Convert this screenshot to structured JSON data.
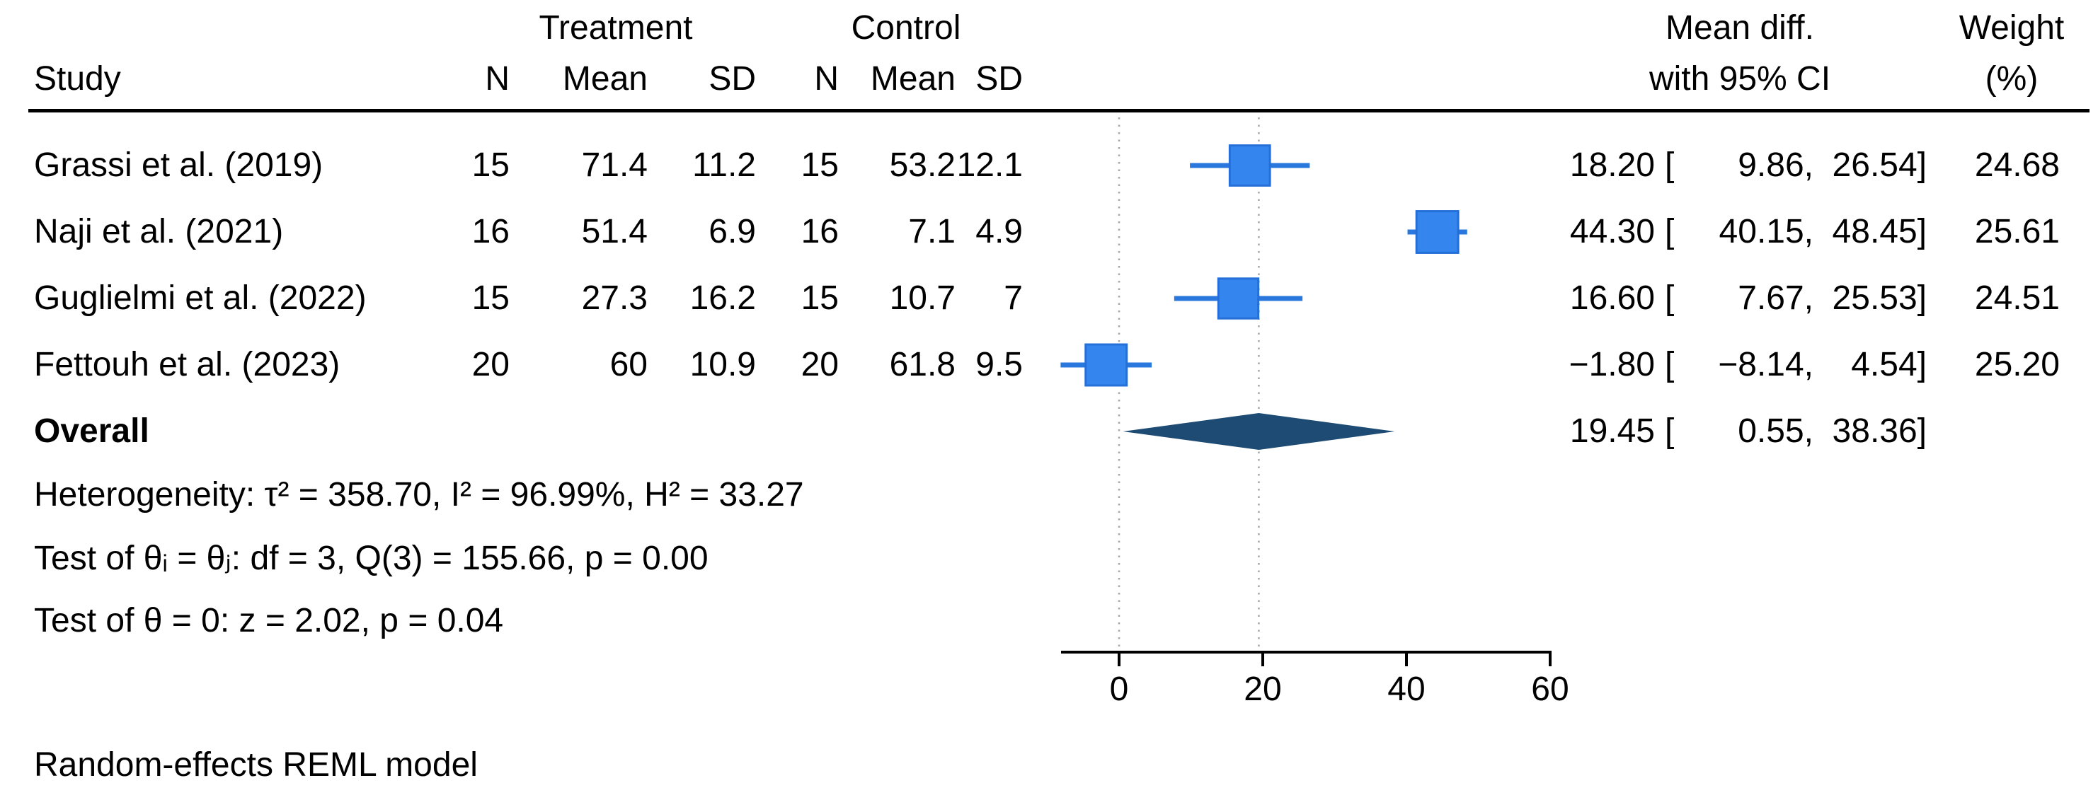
{
  "colors": {
    "square": "#3585ef",
    "square_border": "#2470d8",
    "ci_line": "#2a77dd",
    "diamond": "#1d4b73",
    "ref_line": "#a6a6a6",
    "axis": "#000000",
    "text": "#000000"
  },
  "header": {
    "group1": "Treatment",
    "group2": "Control",
    "study": "Study",
    "n1": "N",
    "mean1": "Mean",
    "sd1": "SD",
    "n2": "N",
    "mean2": "Mean",
    "sd2": "SD",
    "effect_line1": "Mean diff.",
    "effect_line2": "with 95% CI",
    "weight_line1": "Weight",
    "weight_line2": "(%)"
  },
  "rows": [
    {
      "study": "Grassi et al. (2019)",
      "n1": "15",
      "mean1": "71.4",
      "sd1": "11.2",
      "n2": "15",
      "mean2": "53.2",
      "sd2": "12.1",
      "est": "18.20",
      "open": "[",
      "low": "9.86,",
      "high": "26.54]",
      "weight": "24.68"
    },
    {
      "study": "Naji et al. (2021)",
      "n1": "16",
      "mean1": "51.4",
      "sd1": "6.9",
      "n2": "16",
      "mean2": "7.1",
      "sd2": "4.9",
      "est": "44.30",
      "open": "[",
      "low": "40.15,",
      "high": "48.45]",
      "weight": "25.61"
    },
    {
      "study": "Guglielmi et al. (2022)",
      "n1": "15",
      "mean1": "27.3",
      "sd1": "16.2",
      "n2": "15",
      "mean2": "10.7",
      "sd2": "7",
      "est": "16.60",
      "open": "[",
      "low": "7.67,",
      "high": "25.53]",
      "weight": "24.51"
    },
    {
      "study": "Fettouh et al. (2023)",
      "n1": "20",
      "mean1": "60",
      "sd1": "10.9",
      "n2": "20",
      "mean2": "61.8",
      "sd2": "9.5",
      "est": "−1.80",
      "open": "[",
      "low": "−8.14,",
      "high": "4.54]",
      "weight": "25.20"
    }
  ],
  "overall": {
    "label": "Overall",
    "est": "19.45",
    "open": "[",
    "low": "0.55,",
    "high": "38.36]"
  },
  "stats": {
    "heterogeneity": "Heterogeneity: τ² = 358.70, I² = 96.99%, H² = 33.27",
    "test_between": "Test of θᵢ = θⱼ: df = 3, Q(3) = 155.66, p = 0.00",
    "test_overall": "Test of θ = 0: z = 2.02, p = 0.04"
  },
  "footnote": "Random-effects REML model",
  "axis": {
    "tick_labels": [
      "0",
      "20",
      "40",
      "60"
    ]
  },
  "chart_data": {
    "type": "forest",
    "effect_label": "Mean diff. with 95% CI",
    "model": "Random-effects REML model",
    "columns_left": [
      "Study",
      "Treatment N",
      "Treatment Mean",
      "Treatment SD",
      "Control N",
      "Control Mean",
      "Control SD"
    ],
    "columns_right": [
      "Mean diff. with 95% CI",
      "Weight (%)"
    ],
    "studies": [
      {
        "label": "Grassi et al. (2019)",
        "n_t": 15,
        "mean_t": 71.4,
        "sd_t": 11.2,
        "n_c": 15,
        "mean_c": 53.2,
        "sd_c": 12.1,
        "est": 18.2,
        "ci_low": 9.86,
        "ci_high": 26.54,
        "weight": 24.68
      },
      {
        "label": "Naji et al. (2021)",
        "n_t": 16,
        "mean_t": 51.4,
        "sd_t": 6.9,
        "n_c": 16,
        "mean_c": 7.1,
        "sd_c": 4.9,
        "est": 44.3,
        "ci_low": 40.15,
        "ci_high": 48.45,
        "weight": 25.61
      },
      {
        "label": "Guglielmi et al. (2022)",
        "n_t": 15,
        "mean_t": 27.3,
        "sd_t": 16.2,
        "n_c": 15,
        "mean_c": 10.7,
        "sd_c": 7,
        "est": 16.6,
        "ci_low": 7.67,
        "ci_high": 25.53,
        "weight": 24.51
      },
      {
        "label": "Fettouh et al. (2023)",
        "n_t": 20,
        "mean_t": 60,
        "sd_t": 10.9,
        "n_c": 20,
        "mean_c": 61.8,
        "sd_c": 9.5,
        "est": -1.8,
        "ci_low": -8.14,
        "ci_high": 4.54,
        "weight": 25.2
      }
    ],
    "overall": {
      "label": "Overall",
      "est": 19.45,
      "ci_low": 0.55,
      "ci_high": 38.36
    },
    "heterogeneity": {
      "tau2": 358.7,
      "I2_pct": 96.99,
      "H2": 33.27
    },
    "test_between": {
      "df": 3,
      "Q": 155.66,
      "p": 0.0
    },
    "test_overall": {
      "z": 2.02,
      "p": 0.04
    },
    "x_axis": {
      "ticks": [
        0,
        20,
        40,
        60
      ],
      "ref_line": 0,
      "overall_line": 19.45,
      "grid": false
    }
  }
}
